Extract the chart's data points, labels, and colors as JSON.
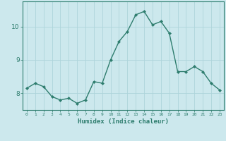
{
  "xlabel": "Humidex (Indice chaleur)",
  "ylabel": "",
  "x_values": [
    0,
    1,
    2,
    3,
    4,
    5,
    6,
    7,
    8,
    9,
    10,
    11,
    12,
    13,
    14,
    15,
    16,
    17,
    18,
    19,
    20,
    21,
    22,
    23
  ],
  "y_values": [
    8.15,
    8.3,
    8.2,
    7.9,
    7.8,
    7.85,
    7.7,
    7.8,
    8.35,
    8.3,
    9.0,
    9.55,
    9.85,
    10.35,
    10.45,
    10.05,
    10.15,
    9.8,
    8.65,
    8.65,
    8.8,
    8.65,
    8.3,
    8.1
  ],
  "line_color": "#2e7d6e",
  "marker_color": "#2e7d6e",
  "bg_color": "#cce8ed",
  "grid_color": "#aed4db",
  "axis_color": "#2e7d6e",
  "tick_color": "#2e7d6e",
  "label_color": "#2e7d6e",
  "ylim": [
    7.5,
    10.75
  ],
  "yticks": [
    8,
    9,
    10
  ],
  "xlim": [
    -0.5,
    23.5
  ],
  "figsize": [
    3.2,
    2.0
  ],
  "dpi": 100
}
